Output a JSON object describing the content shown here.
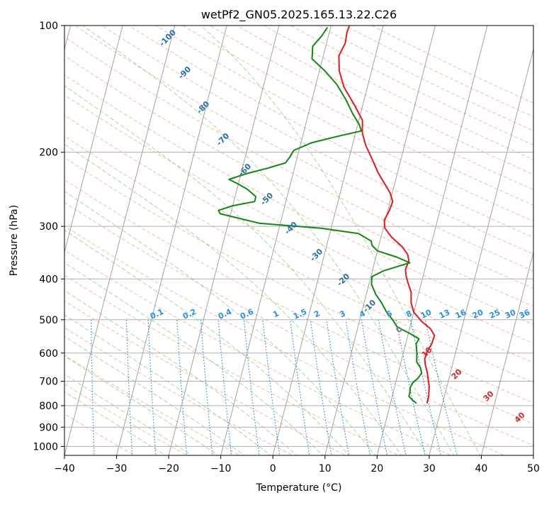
{
  "chart_data": {
    "type": "line",
    "subtype": "skew-T log-P diagram",
    "title": "wetPf2_GN05.2025.165.13.22.C26",
    "xlabel": "Temperature (°C)",
    "ylabel": "Pressure (hPa)",
    "xlim": [
      -40,
      50
    ],
    "ylim": [
      1050,
      100
    ],
    "y_scale": "log",
    "x_ticks": [
      "−40",
      "−30",
      "−20",
      "−10",
      "0",
      "10",
      "20",
      "30",
      "40",
      "50"
    ],
    "y_ticks": [
      "100",
      "200",
      "300",
      "400",
      "500",
      "600",
      "700",
      "800",
      "900",
      "1000"
    ],
    "grid": true,
    "colors": {
      "temperature": "#e41a1c",
      "dewpoint": "#118811",
      "mixing_ratio": "#1f7fd8",
      "dry_adiabat": "#f4a582",
      "moist_adiabat": "#7fc97f",
      "isotherm": "#888888"
    },
    "series": [
      {
        "name": "",
        "color": "#e41a1c",
        "points": [
          [
            27,
            790
          ],
          [
            27,
            760
          ],
          [
            26.6,
            720
          ],
          [
            26,
            690
          ],
          [
            25.5,
            665
          ],
          [
            24.8,
            640
          ],
          [
            24.4,
            620
          ],
          [
            24.5,
            595
          ],
          [
            25,
            570
          ],
          [
            25.1,
            545
          ],
          [
            24,
            525
          ],
          [
            22,
            505
          ],
          [
            20,
            480
          ],
          [
            19,
            455
          ],
          [
            18.5,
            430
          ],
          [
            17.5,
            410
          ],
          [
            16.8,
            395
          ],
          [
            16.3,
            380
          ],
          [
            16.5,
            362
          ],
          [
            16,
            350
          ],
          [
            14.5,
            335
          ],
          [
            12,
            318
          ],
          [
            10.3,
            303
          ],
          [
            9.8,
            290
          ],
          [
            10.3,
            275
          ],
          [
            10.5,
            262
          ],
          [
            9.6,
            250
          ],
          [
            8,
            237
          ],
          [
            6.2,
            223
          ],
          [
            4.5,
            208
          ],
          [
            2.6,
            193
          ],
          [
            1.3,
            180
          ],
          [
            0.7,
            168
          ],
          [
            -1.5,
            155
          ],
          [
            -4.5,
            140
          ],
          [
            -6.2,
            128
          ],
          [
            -7,
            118
          ],
          [
            -6.4,
            110
          ],
          [
            -6.6,
            104
          ],
          [
            -6.5,
            100
          ]
        ]
      },
      {
        "name": "",
        "color": "#118811",
        "points": [
          [
            25,
            790
          ],
          [
            24,
            775
          ],
          [
            23.2,
            760
          ],
          [
            23.2,
            740
          ],
          [
            23,
            725
          ],
          [
            23.3,
            705
          ],
          [
            24,
            690
          ],
          [
            24.5,
            670
          ],
          [
            24,
            650
          ],
          [
            23,
            630
          ],
          [
            22.6,
            600
          ],
          [
            22,
            570
          ],
          [
            22.3,
            555
          ],
          [
            20.4,
            540
          ],
          [
            17.5,
            520
          ],
          [
            16.3,
            500
          ],
          [
            14.8,
            480
          ],
          [
            13.3,
            455
          ],
          [
            11.8,
            435
          ],
          [
            10.5,
            412
          ],
          [
            10.2,
            395
          ],
          [
            12.3,
            382
          ],
          [
            14.3,
            375
          ],
          [
            16.8,
            366
          ],
          [
            14,
            355
          ],
          [
            10,
            343
          ],
          [
            8.7,
            333
          ],
          [
            8.3,
            325
          ],
          [
            5.5,
            312
          ],
          [
            -2,
            303
          ],
          [
            -14,
            295
          ],
          [
            -22,
            280
          ],
          [
            -22.5,
            275
          ],
          [
            -20,
            268
          ],
          [
            -16,
            262
          ],
          [
            -16,
            255
          ],
          [
            -18,
            245
          ],
          [
            -20,
            238
          ],
          [
            -22,
            232
          ],
          [
            -19,
            225
          ],
          [
            -15,
            218
          ],
          [
            -12,
            212
          ],
          [
            -11.5,
            206
          ],
          [
            -11,
            198
          ],
          [
            -8,
            190
          ],
          [
            -3,
            183
          ],
          [
            1,
            178
          ],
          [
            0.3,
            172
          ],
          [
            -1.5,
            162
          ],
          [
            -3.5,
            150
          ],
          [
            -6,
            138
          ],
          [
            -9,
            128
          ],
          [
            -12,
            120
          ],
          [
            -12.5,
            112
          ],
          [
            -11.3,
            106
          ],
          [
            -10.6,
            101
          ]
        ]
      }
    ],
    "isotherm_labels": [
      "-100",
      "-90",
      "-80",
      "-70",
      "-60",
      "-50",
      "-40",
      "-30",
      "-20",
      "-10",
      "0",
      "10",
      "20",
      "30",
      "40"
    ],
    "mixing_ratio_labels": [
      "0.1",
      "0.2",
      "0.4",
      "0.6",
      "1",
      "1.5",
      "2",
      "3",
      "4",
      "6",
      "8",
      "10",
      "13",
      "16",
      "20",
      "25",
      "30",
      "36"
    ]
  }
}
